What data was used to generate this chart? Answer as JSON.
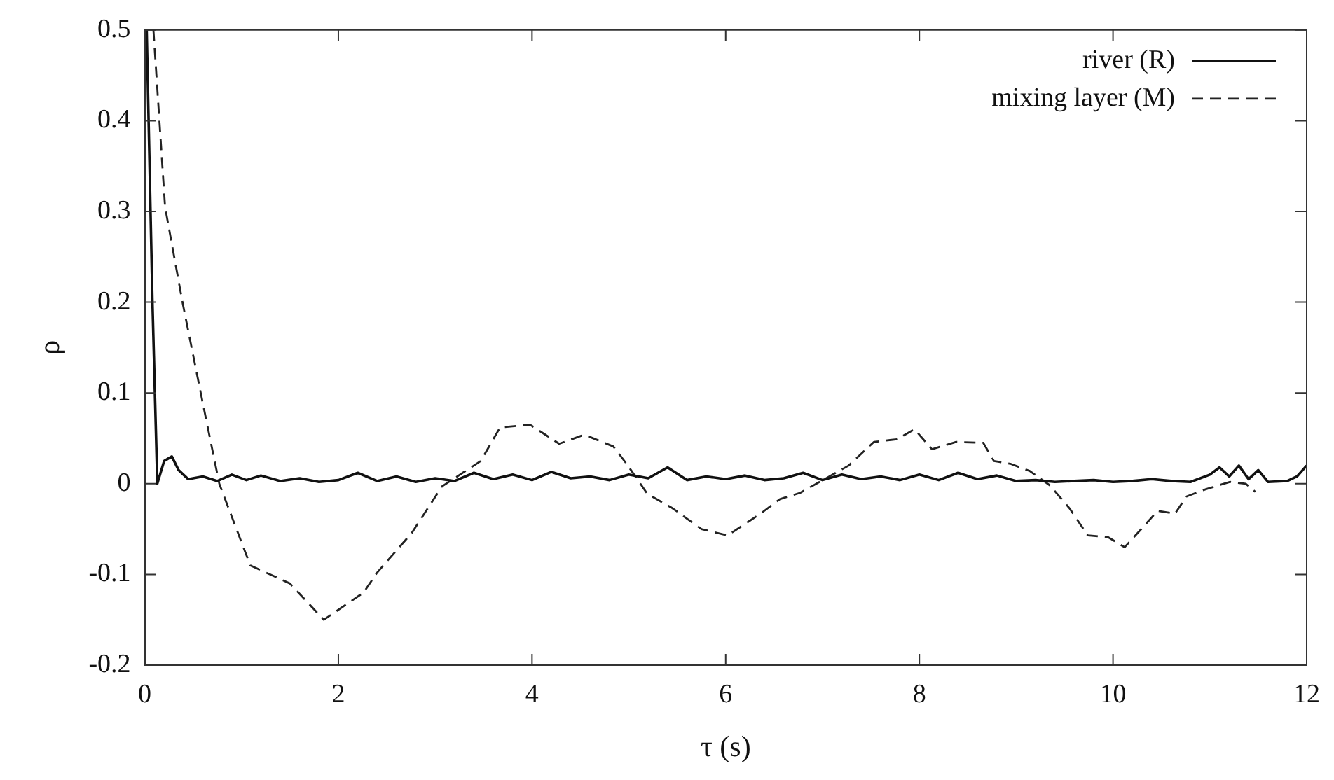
{
  "chart_data": {
    "type": "line",
    "xlabel": "τ (s)",
    "ylabel": "ρ",
    "xlim": [
      0,
      12
    ],
    "ylim": [
      -0.2,
      0.5
    ],
    "xticks": [
      0,
      2,
      4,
      6,
      8,
      10,
      12
    ],
    "yticks": [
      -0.2,
      -0.1,
      0,
      0.1,
      0.2,
      0.3,
      0.4,
      0.5
    ],
    "grid": false,
    "legend": "top right",
    "marker": "none",
    "series": [
      {
        "name": "river (R)",
        "color": "#111111",
        "line_style": "solid",
        "x": [
          0.02,
          0.08,
          0.13,
          0.2,
          0.28,
          0.35,
          0.45,
          0.6,
          0.75,
          0.9,
          1.05,
          1.2,
          1.4,
          1.6,
          1.8,
          2.0,
          2.2,
          2.4,
          2.6,
          2.8,
          3.0,
          3.2,
          3.4,
          3.6,
          3.8,
          4.0,
          4.2,
          4.4,
          4.6,
          4.8,
          5.0,
          5.2,
          5.4,
          5.6,
          5.8,
          6.0,
          6.2,
          6.4,
          6.6,
          6.8,
          7.0,
          7.2,
          7.4,
          7.6,
          7.8,
          8.0,
          8.2,
          8.4,
          8.6,
          8.8,
          9.0,
          9.2,
          9.4,
          9.6,
          9.8,
          10.0,
          10.2,
          10.4,
          10.6,
          10.8,
          11.0,
          11.1,
          11.2,
          11.3,
          11.4,
          11.5,
          11.6,
          11.8,
          11.9,
          12.0
        ],
        "values": [
          0.5,
          0.2,
          0.0,
          0.025,
          0.03,
          0.015,
          0.005,
          0.008,
          0.003,
          0.01,
          0.004,
          0.009,
          0.003,
          0.006,
          0.002,
          0.004,
          0.012,
          0.003,
          0.008,
          0.002,
          0.006,
          0.003,
          0.012,
          0.005,
          0.01,
          0.004,
          0.013,
          0.006,
          0.008,
          0.004,
          0.01,
          0.006,
          0.018,
          0.004,
          0.008,
          0.005,
          0.009,
          0.004,
          0.006,
          0.012,
          0.004,
          0.01,
          0.005,
          0.008,
          0.004,
          0.01,
          0.004,
          0.012,
          0.005,
          0.009,
          0.003,
          0.004,
          0.002,
          0.003,
          0.004,
          0.002,
          0.003,
          0.005,
          0.003,
          0.002,
          0.01,
          0.018,
          0.008,
          0.02,
          0.005,
          0.015,
          0.002,
          0.003,
          0.008,
          0.02
        ]
      },
      {
        "name": "mixing layer (M)",
        "color": "#222222",
        "line_style": "dashed",
        "x": [
          0.09,
          0.21,
          0.39,
          0.59,
          0.77,
          1.09,
          1.5,
          1.85,
          2.26,
          2.4,
          2.76,
          3.07,
          3.47,
          3.67,
          3.98,
          4.28,
          4.54,
          4.84,
          4.99,
          5.19,
          5.45,
          5.75,
          6.02,
          6.36,
          6.56,
          6.77,
          7.27,
          7.53,
          7.77,
          7.95,
          8.13,
          8.38,
          8.66,
          8.77,
          8.94,
          9.14,
          9.35,
          9.55,
          9.74,
          9.95,
          10.12,
          10.3,
          10.46,
          10.64,
          10.76,
          10.96,
          11.21,
          11.37,
          11.47
        ],
        "values": [
          0.5,
          0.305,
          0.2,
          0.094,
          0.0,
          -0.09,
          -0.11,
          -0.15,
          -0.12,
          -0.098,
          -0.054,
          -0.003,
          0.025,
          0.062,
          0.065,
          0.044,
          0.054,
          0.041,
          0.02,
          -0.011,
          -0.027,
          -0.05,
          -0.057,
          -0.033,
          -0.017,
          -0.01,
          0.02,
          0.046,
          0.049,
          0.06,
          0.038,
          0.046,
          0.045,
          0.025,
          0.022,
          0.014,
          -0.002,
          -0.027,
          -0.057,
          -0.059,
          -0.07,
          -0.049,
          -0.03,
          -0.033,
          -0.014,
          -0.006,
          0.002,
          0.0,
          -0.009
        ]
      }
    ]
  }
}
